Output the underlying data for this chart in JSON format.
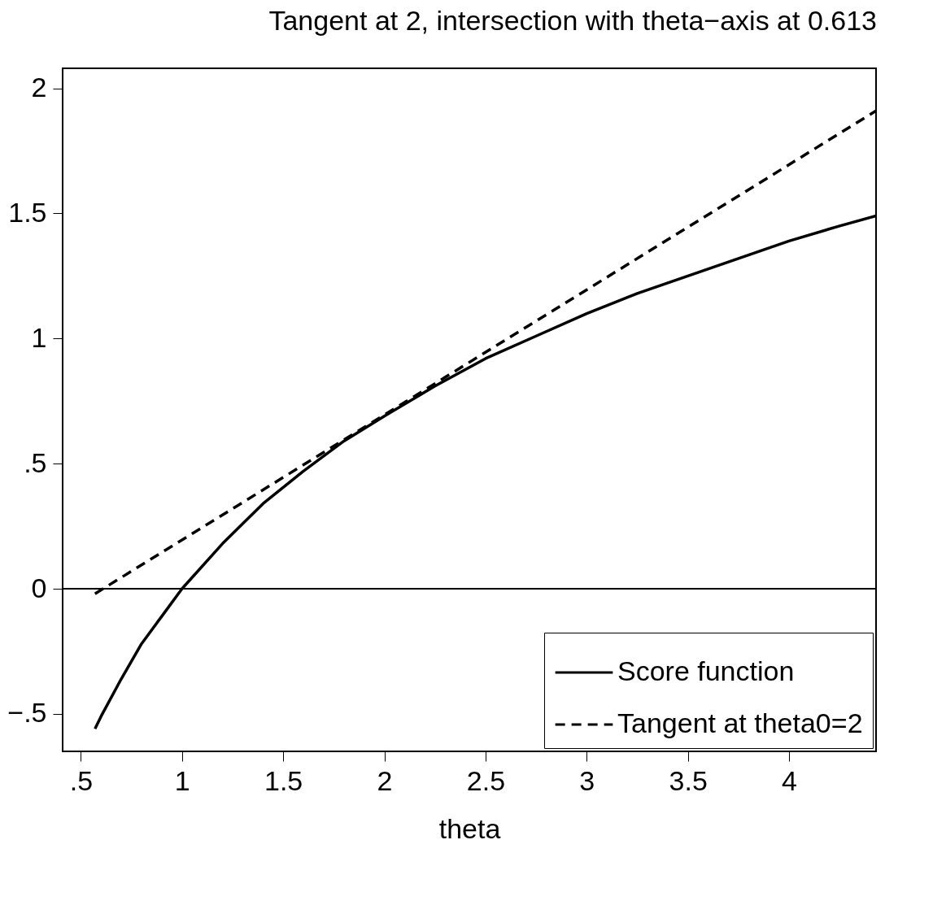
{
  "chart_data": {
    "type": "line",
    "title": "Tangent at 2, intersection with theta−axis at 0.613",
    "xlabel": "theta",
    "xlim": [
      0.41,
      4.43
    ],
    "ylim": [
      -0.65,
      2.08
    ],
    "xticks": [
      {
        "value": 0.5,
        "label": ".5"
      },
      1,
      1.5,
      2,
      2.5,
      3,
      3.5,
      4
    ],
    "yticks": [
      {
        "value": -0.5,
        "label": "−.5"
      },
      0,
      {
        "value": 0.5,
        "label": ".5"
      },
      1,
      1.5,
      2
    ],
    "grid": false,
    "legend": "bottom right",
    "marker": "none",
    "ref_lines": [
      {
        "axis": "y",
        "value": 0,
        "color": "#000000",
        "line_style": "solid"
      }
    ],
    "series": [
      {
        "name": "Score function",
        "color": "#000000",
        "line_style": "solid",
        "x": [
          0.57,
          0.6,
          0.7,
          0.8,
          0.9,
          1,
          1.2,
          1.4,
          1.6,
          1.8,
          2,
          2.25,
          2.5,
          2.75,
          3,
          3.25,
          3.5,
          3.75,
          4,
          4.25,
          4.43
        ],
        "values": [
          -0.56,
          -0.51,
          -0.36,
          -0.22,
          -0.11,
          0,
          0.18,
          0.34,
          0.47,
          0.59,
          0.69,
          0.81,
          0.92,
          1.01,
          1.1,
          1.18,
          1.25,
          1.32,
          1.39,
          1.45,
          1.49
        ]
      },
      {
        "name": "Tangent at theta0=2",
        "color": "#000000",
        "line_style": "dashed",
        "x": [
          0.57,
          4.43
        ],
        "values": [
          -0.02,
          1.91
        ]
      }
    ]
  }
}
